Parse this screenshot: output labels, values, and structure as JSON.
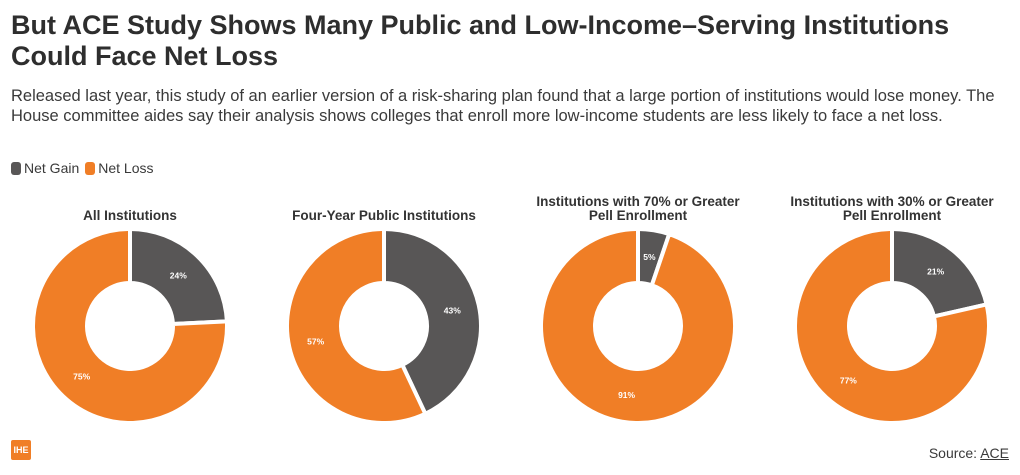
{
  "header": {
    "title": "But ACE Study Shows Many Public and Low-Income–Serving Institutions Could Face Net Loss",
    "subtitle": "Released last year, this study of an earlier version of a risk-sharing plan found that a large portion of institutions would lose money. The House committee aides say their analysis shows colleges that enroll more low-income students are less likely to face a net loss."
  },
  "legend": {
    "items": [
      {
        "label": "Net Gain",
        "color": "#585656"
      },
      {
        "label": "Net Loss",
        "color": "#f07e26"
      }
    ]
  },
  "chart_data": [
    {
      "type": "pie",
      "title": "All Institutions",
      "categories": [
        "Net Gain",
        "Net Loss"
      ],
      "values": [
        24,
        75
      ],
      "labels": [
        "24%",
        "75%"
      ],
      "colors": [
        "#585656",
        "#f07e26"
      ]
    },
    {
      "type": "pie",
      "title": "Four-Year Public Institutions",
      "categories": [
        "Net Gain",
        "Net Loss"
      ],
      "values": [
        43,
        57
      ],
      "labels": [
        "43%",
        "57%"
      ],
      "colors": [
        "#585656",
        "#f07e26"
      ]
    },
    {
      "type": "pie",
      "title": "Institutions with 70% or Greater Pell Enrollment",
      "categories": [
        "Net Gain",
        "Net Loss"
      ],
      "values": [
        5,
        91
      ],
      "labels": [
        "5%",
        "91%"
      ],
      "colors": [
        "#585656",
        "#f07e26"
      ]
    },
    {
      "type": "pie",
      "title": "Institutions with 30% or Greater Pell Enrollment",
      "categories": [
        "Net Gain",
        "Net Loss"
      ],
      "values": [
        21,
        77
      ],
      "labels": [
        "21%",
        "77%"
      ],
      "colors": [
        "#585656",
        "#f07e26"
      ]
    }
  ],
  "footer": {
    "logo_text": "IHE",
    "source_prefix": "Source:",
    "source_link": "ACE"
  }
}
